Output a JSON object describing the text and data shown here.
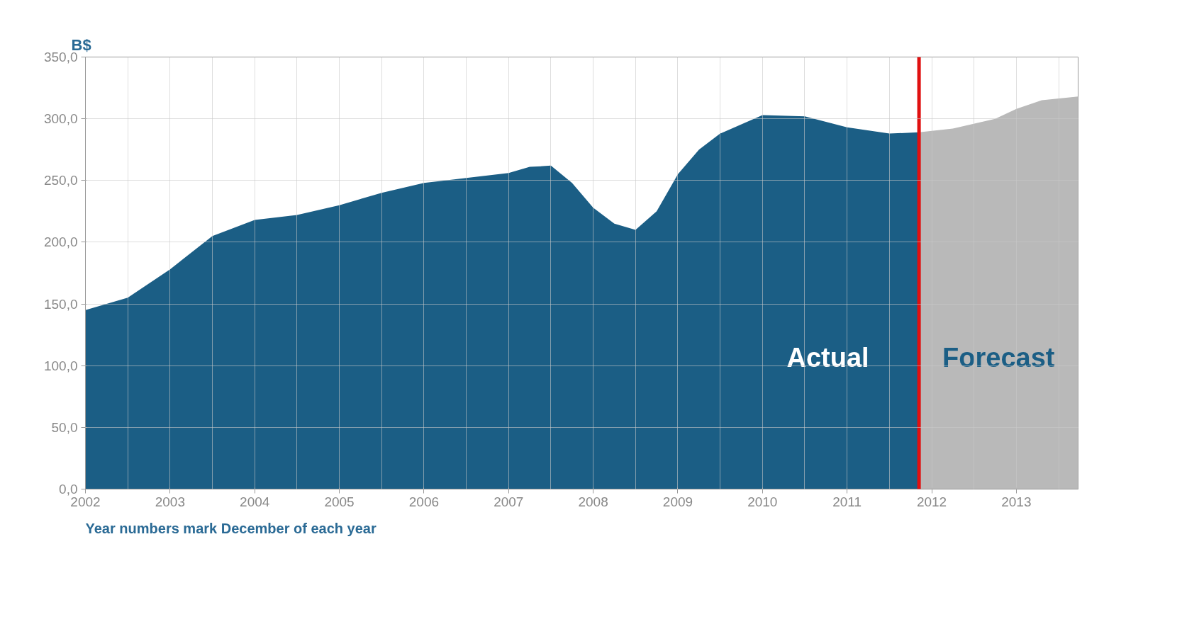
{
  "chart_data": {
    "type": "area",
    "ylabel": "B$",
    "xlim": [
      2002,
      2013.73
    ],
    "ylim": [
      0,
      350
    ],
    "xticks": [
      2002,
      2003,
      2004,
      2005,
      2006,
      2007,
      2008,
      2009,
      2010,
      2011,
      2012,
      2013
    ],
    "yticks": [
      {
        "value": 0,
        "label": "0,0"
      },
      {
        "value": 50,
        "label": "50,0"
      },
      {
        "value": 100,
        "label": "100,0"
      },
      {
        "value": 150,
        "label": "150,0"
      },
      {
        "value": 200,
        "label": "200,0"
      },
      {
        "value": 250,
        "label": "250,0"
      },
      {
        "value": 300,
        "label": "300,0"
      },
      {
        "value": 350,
        "label": "350,0"
      }
    ],
    "grid": true,
    "series": [
      {
        "name": "Actual",
        "color": "#1b5e85",
        "x": [
          2002,
          2002.5,
          2003,
          2003.5,
          2004,
          2004.5,
          2005,
          2005.5,
          2006,
          2006.5,
          2007,
          2007.25,
          2007.5,
          2007.75,
          2008,
          2008.25,
          2008.5,
          2008.75,
          2009,
          2009.25,
          2009.5,
          2010,
          2010.5,
          2011,
          2011.5,
          2011.85
        ],
        "values": [
          145,
          155,
          178,
          205,
          218,
          222,
          230,
          240,
          248,
          252,
          256,
          261,
          262,
          248,
          228,
          215,
          210,
          225,
          255,
          275,
          288,
          303,
          302,
          293,
          288,
          289
        ]
      },
      {
        "name": "Forecast",
        "color": "#b9b9b9",
        "x": [
          2011.85,
          2012.25,
          2012.75,
          2013,
          2013.3,
          2013.73
        ],
        "values": [
          289,
          292,
          300,
          308,
          315,
          318
        ]
      }
    ],
    "ref_lines": [
      {
        "axis": "x",
        "value": 2011.85,
        "color": "#e01010"
      }
    ],
    "annotations": [
      "Year numbers mark December of each year"
    ]
  }
}
